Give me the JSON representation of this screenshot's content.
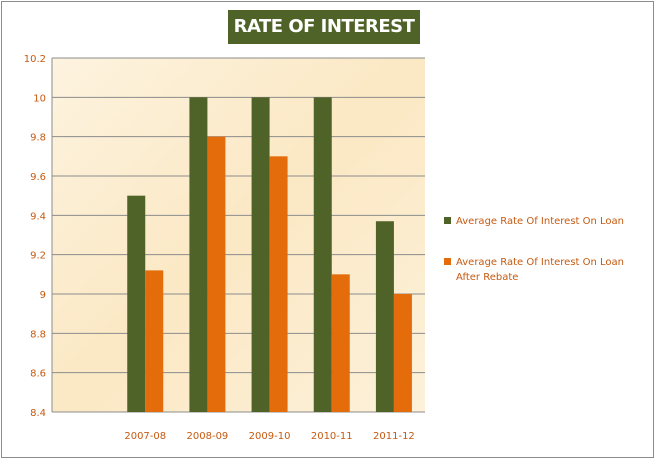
{
  "chart_data": {
    "type": "bar",
    "title": "RATE OF INTEREST",
    "categories": [
      "",
      "2007-08",
      "2008-09",
      "2009-10",
      "2010-11",
      "2011-12"
    ],
    "series": [
      {
        "name": "Average Rate Of Interest On Loan",
        "color": "#4f6228",
        "values": [
          null,
          9.5,
          10,
          10,
          10,
          9.37
        ]
      },
      {
        "name": "Average Rate Of Interest On Loan After Rebate",
        "color": "#e46c0a",
        "values": [
          null,
          9.12,
          9.8,
          9.7,
          9.1,
          9.0
        ]
      }
    ],
    "ylim": [
      8.4,
      10.2
    ],
    "yticks": [
      "8.4",
      "8.6",
      "8.8",
      "9",
      "9.2",
      "9.4",
      "9.6",
      "9.8",
      "10",
      "10.2"
    ],
    "ytick_values": [
      8.4,
      8.6,
      8.8,
      9.0,
      9.2,
      9.4,
      9.6,
      9.8,
      10.0,
      10.2
    ],
    "grid": true,
    "legend_position": "right",
    "xlabel": "",
    "ylabel": ""
  }
}
